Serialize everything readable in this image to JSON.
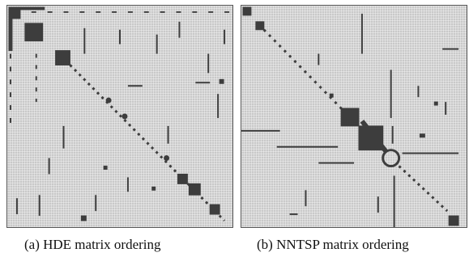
{
  "figure": {
    "panels": [
      {
        "id": "a",
        "caption": "(a)  HDE matrix ordering"
      },
      {
        "id": "b",
        "caption": "(b)  NNTSP matrix ordering"
      }
    ]
  },
  "colors": {
    "matrix_background": "#c9c9c9",
    "nonzero": "#3d3d3d"
  }
}
